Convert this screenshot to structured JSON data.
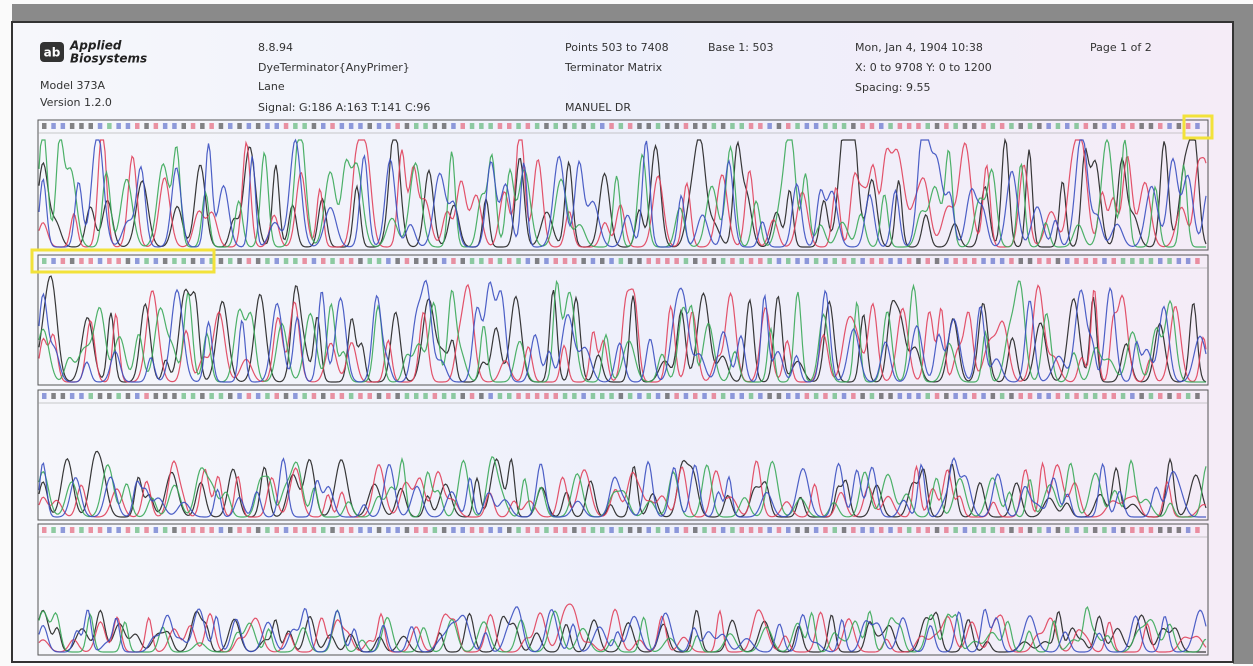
{
  "header": {
    "logo_mark": "ab",
    "logo_line1": "Applied",
    "logo_line2": "Biosystems",
    "model": "Model 373A",
    "version": "Version 1.2.0",
    "date": "8.8.94",
    "dye": "DyeTerminator{AnyPrimer}",
    "lane": "Lane",
    "signal": "Signal: G:186 A:163 T:141 C:96",
    "points": "Points 503 to 7408",
    "base": "Base 1: 503",
    "matrix": "Terminator Matrix",
    "operator": "MANUEL DR",
    "timestamp": "Mon, Jan 4, 1904  10:38",
    "range": "X: 0 to 9708  Y: 0 to 1200",
    "spacing": "Spacing: 9.55",
    "page": "Page 1 of 2"
  }
}
